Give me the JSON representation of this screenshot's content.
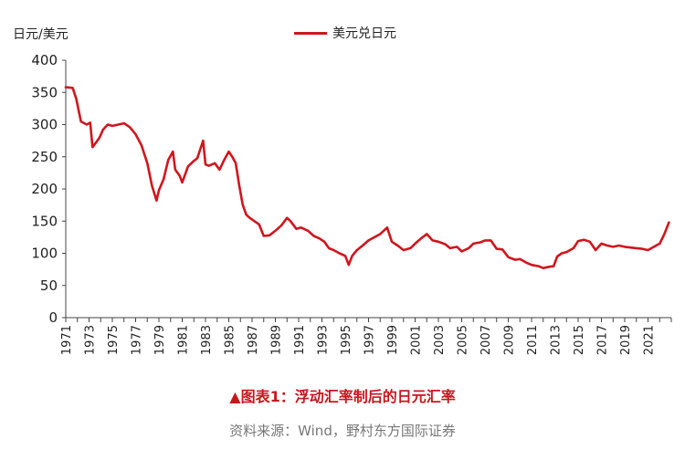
{
  "chart_data": {
    "type": "line",
    "ylabel": "日元/美元",
    "ylim": [
      0,
      400
    ],
    "yticks": [
      0,
      50,
      100,
      150,
      200,
      250,
      300,
      350,
      400
    ],
    "xlim": [
      1971,
      2023
    ],
    "xticks": [
      "1971",
      "1973",
      "1975",
      "1977",
      "1979",
      "1981",
      "1983",
      "1985",
      "1987",
      "1989",
      "1991",
      "1993",
      "1995",
      "1997",
      "1999",
      "2001",
      "2003",
      "2005",
      "2007",
      "2009",
      "2011",
      "2013",
      "2015",
      "2017",
      "2019",
      "2021"
    ],
    "grid": false,
    "legend_position": "top-center",
    "color": "#d0151e",
    "series": [
      {
        "name": "美元兑日元",
        "x": [
          1971.0,
          1971.6,
          1971.9,
          1972.3,
          1972.8,
          1973.1,
          1973.3,
          1973.6,
          1973.9,
          1974.2,
          1974.6,
          1975.0,
          1975.5,
          1976.0,
          1976.5,
          1977.0,
          1977.5,
          1978.0,
          1978.4,
          1978.8,
          1979.0,
          1979.4,
          1979.8,
          1980.2,
          1980.4,
          1980.8,
          1981.0,
          1981.5,
          1981.9,
          1982.3,
          1982.8,
          1983.0,
          1983.3,
          1983.8,
          1984.2,
          1984.6,
          1985.0,
          1985.3,
          1985.6,
          1985.9,
          1986.2,
          1986.5,
          1986.8,
          1987.2,
          1987.6,
          1988.0,
          1988.5,
          1989.0,
          1989.5,
          1990.0,
          1990.3,
          1990.8,
          1991.2,
          1991.8,
          1992.3,
          1992.8,
          1993.2,
          1993.6,
          1994.0,
          1994.5,
          1995.0,
          1995.3,
          1995.6,
          1996.0,
          1996.5,
          1997.0,
          1997.5,
          1998.0,
          1998.6,
          1999.0,
          1999.5,
          2000.0,
          2000.6,
          2001.0,
          2001.5,
          2002.0,
          2002.5,
          2003.0,
          2003.6,
          2004.0,
          2004.6,
          2005.0,
          2005.6,
          2006.0,
          2006.6,
          2007.0,
          2007.5,
          2008.0,
          2008.5,
          2009.0,
          2009.6,
          2010.0,
          2010.6,
          2011.0,
          2011.6,
          2012.0,
          2012.5,
          2012.9,
          2013.2,
          2013.6,
          2014.0,
          2014.6,
          2015.0,
          2015.5,
          2016.0,
          2016.5,
          2017.0,
          2017.5,
          2018.0,
          2018.5,
          2019.0,
          2019.5,
          2020.0,
          2020.5,
          2021.0,
          2021.5,
          2022.0,
          2022.4,
          2022.8
        ],
        "values": [
          358,
          357,
          340,
          305,
          300,
          303,
          265,
          272,
          280,
          292,
          300,
          298,
          300,
          302,
          296,
          285,
          268,
          240,
          205,
          182,
          198,
          215,
          245,
          258,
          230,
          220,
          210,
          235,
          242,
          248,
          275,
          238,
          236,
          240,
          230,
          245,
          258,
          250,
          240,
          205,
          175,
          160,
          155,
          150,
          145,
          127,
          128,
          135,
          143,
          155,
          150,
          138,
          140,
          135,
          127,
          123,
          118,
          108,
          105,
          100,
          96,
          82,
          96,
          105,
          112,
          120,
          125,
          130,
          140,
          118,
          112,
          105,
          108,
          115,
          123,
          130,
          120,
          118,
          114,
          108,
          110,
          103,
          108,
          115,
          117,
          120,
          120,
          107,
          106,
          94,
          90,
          91,
          85,
          82,
          80,
          77,
          79,
          80,
          95,
          100,
          102,
          108,
          119,
          121,
          118,
          105,
          115,
          112,
          110,
          112,
          110,
          109,
          108,
          107,
          105,
          110,
          115,
          130,
          148
        ]
      }
    ]
  },
  "caption": "▲图表1：浮动汇率制后的日元汇率",
  "source": "资料来源：Wind，野村东方国际证券"
}
